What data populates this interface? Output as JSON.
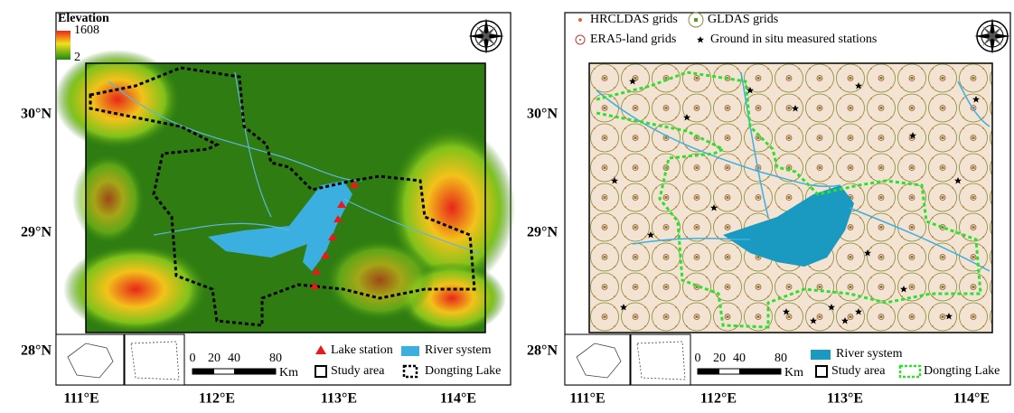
{
  "left_panel": {
    "elevation_legend": {
      "title": "Elevation",
      "max": "1608",
      "min": "2"
    },
    "lat_labels": [
      "30°N",
      "29°N",
      "28°N"
    ],
    "lon_labels": [
      "111°E",
      "112°E",
      "113°E",
      "114°E"
    ],
    "scale_bar": {
      "ticks": [
        "0",
        "20",
        "40",
        "80"
      ],
      "unit": "Km"
    },
    "legend": [
      "Lake station",
      "River system",
      "Study area",
      "Dongting Lake"
    ]
  },
  "right_panel": {
    "top_legend": [
      "HRCLDAS grids",
      "GLDAS grids",
      "ERA5-land grids",
      "Ground in situ measured stations"
    ],
    "lat_labels": [
      "30°N",
      "29°N",
      "28°N"
    ],
    "lon_labels": [
      "111°E",
      "112°E",
      "113°E",
      "114°E"
    ],
    "scale_bar": {
      "ticks": [
        "0",
        "20",
        "40",
        "80"
      ],
      "unit": "Km"
    },
    "legend": [
      "River system",
      "Study area",
      "Dongting Lake"
    ]
  }
}
